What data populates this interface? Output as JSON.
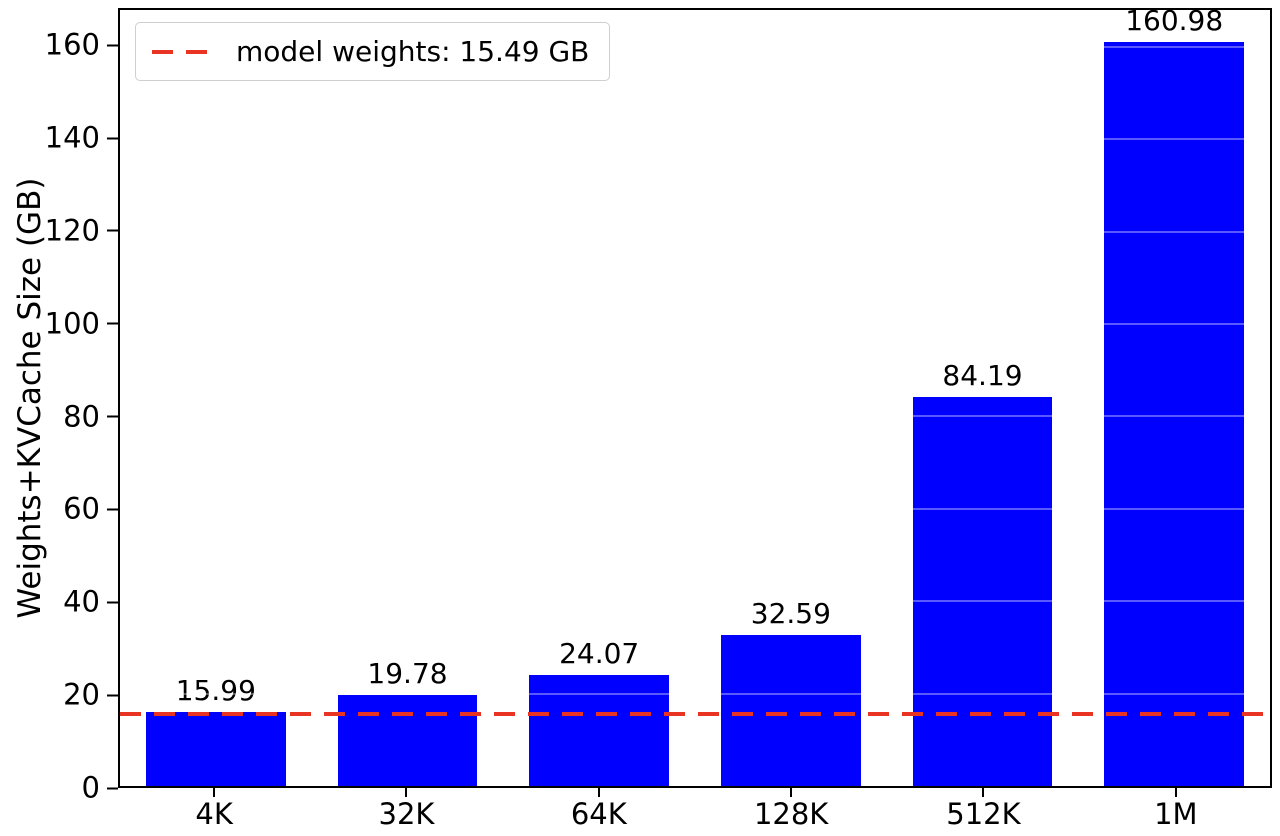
{
  "chart_data": {
    "type": "bar",
    "title": "",
    "xlabel": "",
    "ylabel": "Weights+KVCache Size (GB)",
    "categories": [
      "4K",
      "32K",
      "64K",
      "128K",
      "512K",
      "1M"
    ],
    "values": [
      15.99,
      19.78,
      24.07,
      32.59,
      84.19,
      160.98
    ],
    "value_labels": [
      "15.99",
      "19.78",
      "24.07",
      "32.59",
      "84.19",
      "160.98"
    ],
    "ylim": [
      0,
      168
    ],
    "yticks": [
      0,
      20,
      40,
      60,
      80,
      100,
      120,
      140,
      160
    ],
    "grid": false,
    "legend": {
      "position": "upper-left",
      "label": "model weights: 15.49 GB"
    },
    "reference_line": {
      "value": 15.49,
      "style": "dashed",
      "color": "#ea3423"
    },
    "colors": {
      "bar": "#0000ff",
      "reference": "#ea3423",
      "text": "#000000"
    }
  }
}
